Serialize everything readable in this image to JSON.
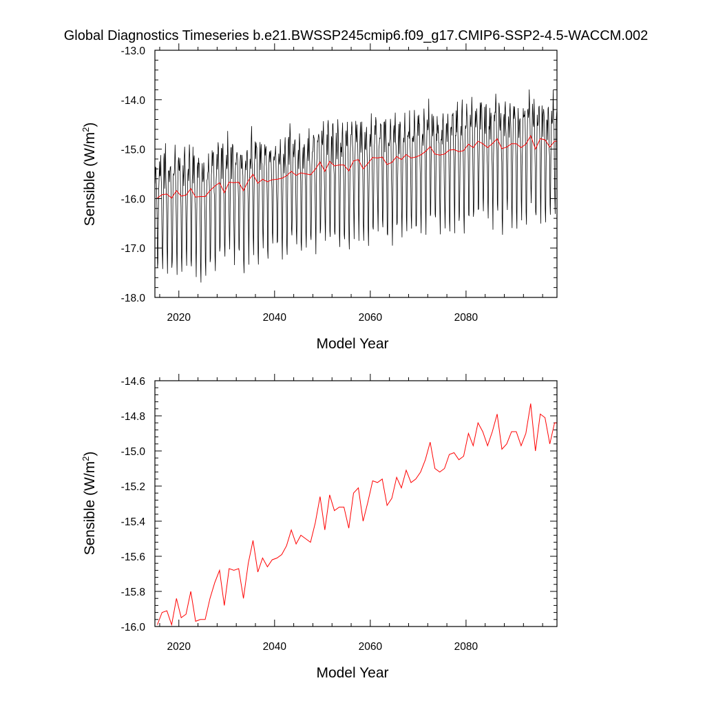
{
  "title": "Global Diagnostics Timeseries b.e21.BWSSP245cmip6.f09_g17.CMIP6-SSP2-4.5-WACCM.002",
  "colors": {
    "monthly": "#000000",
    "annual": "#ff0000",
    "axes": "#000000"
  },
  "chart_data": [
    {
      "type": "line",
      "name": "monthly-and-annual",
      "xlabel": "Model Year",
      "ylabel": "Sensible (W/m",
      "ylabel_sup": "2",
      "ylabel_end": ")",
      "xlim": [
        2015,
        2099
      ],
      "ylim": [
        -18.0,
        -13.0
      ],
      "xticks": [
        2020,
        2040,
        2060,
        2080
      ],
      "xtick_labels": [
        "2020",
        "2040",
        "2060",
        "2080"
      ],
      "yticks": [
        -18.0,
        -17.0,
        -16.0,
        -15.0,
        -14.0,
        -13.0
      ],
      "ytick_labels": [
        "-18.0",
        "-17.0",
        "-16.0",
        "-15.0",
        "-14.0",
        "-13.0"
      ],
      "series": [
        {
          "key": "monthly",
          "color": "#000000",
          "monthly_pattern_approx": {
            "start_year": 2015,
            "end_year": 2099,
            "annual_mean_reference": "series[1]",
            "month_offsets": [
              0.3,
              0.6,
              0.8,
              0.5,
              0.1,
              -0.4,
              -1.2,
              -1.5,
              -0.6,
              0.2,
              0.5,
              0.6
            ],
            "noise": 0.25
          }
        },
        {
          "key": "annual",
          "color": "#ff0000",
          "x": [
            2015,
            2016,
            2017,
            2018,
            2019,
            2020,
            2021,
            2022,
            2023,
            2024,
            2025,
            2026,
            2027,
            2028,
            2029,
            2030,
            2031,
            2032,
            2033,
            2034,
            2035,
            2036,
            2037,
            2038,
            2039,
            2040,
            2041,
            2042,
            2043,
            2044,
            2045,
            2046,
            2047,
            2048,
            2049,
            2050,
            2051,
            2052,
            2053,
            2054,
            2055,
            2056,
            2057,
            2058,
            2059,
            2060,
            2061,
            2062,
            2063,
            2064,
            2065,
            2066,
            2067,
            2068,
            2069,
            2070,
            2071,
            2072,
            2073,
            2074,
            2075,
            2076,
            2077,
            2078,
            2079,
            2080,
            2081,
            2082,
            2083,
            2084,
            2085,
            2086,
            2087,
            2088,
            2089,
            2090,
            2091,
            2092,
            2093,
            2094,
            2095,
            2096,
            2097,
            2098,
            2099
          ],
          "values": [
            -15.99,
            -15.92,
            -15.91,
            -15.99,
            -15.84,
            -15.95,
            -15.93,
            -15.8,
            -15.97,
            -15.96,
            -15.96,
            -15.84,
            -15.75,
            -15.68,
            -15.88,
            -15.67,
            -15.68,
            -15.67,
            -15.84,
            -15.64,
            -15.51,
            -15.69,
            -15.61,
            -15.66,
            -15.62,
            -15.61,
            -15.59,
            -15.54,
            -15.45,
            -15.53,
            -15.48,
            -15.5,
            -15.52,
            -15.41,
            -15.26,
            -15.45,
            -15.25,
            -15.34,
            -15.32,
            -15.32,
            -15.44,
            -15.24,
            -15.21,
            -15.4,
            -15.29,
            -15.17,
            -15.18,
            -15.16,
            -15.31,
            -15.27,
            -15.15,
            -15.21,
            -15.11,
            -15.18,
            -15.16,
            -15.12,
            -15.05,
            -14.95,
            -15.1,
            -15.12,
            -15.1,
            -15.02,
            -15.01,
            -15.05,
            -15.03,
            -14.9,
            -14.97,
            -14.84,
            -14.89,
            -14.97,
            -14.89,
            -14.79,
            -14.99,
            -14.96,
            -14.89,
            -14.89,
            -14.97,
            -14.9,
            -14.73,
            -15.0,
            -14.79,
            -14.81,
            -14.96,
            -14.84,
            -14.84
          ]
        }
      ]
    },
    {
      "type": "line",
      "name": "annual-only",
      "xlabel": "Model Year",
      "ylabel": "Sensible (W/m",
      "ylabel_sup": "2",
      "ylabel_end": ")",
      "xlim": [
        2015,
        2099
      ],
      "ylim": [
        -16.0,
        -14.6
      ],
      "xticks": [
        2020,
        2040,
        2060,
        2080
      ],
      "xtick_labels": [
        "2020",
        "2040",
        "2060",
        "2080"
      ],
      "yticks": [
        -16.0,
        -15.8,
        -15.6,
        -15.4,
        -15.2,
        -15.0,
        -14.8,
        -14.6
      ],
      "ytick_labels": [
        "-16.0",
        "-15.8",
        "-15.6",
        "-15.4",
        "-15.2",
        "-15.0",
        "-14.8",
        "-14.6"
      ],
      "series": [
        {
          "key": "annual",
          "color": "#ff0000",
          "same_as": "chart_data.0.series.1"
        }
      ]
    }
  ]
}
